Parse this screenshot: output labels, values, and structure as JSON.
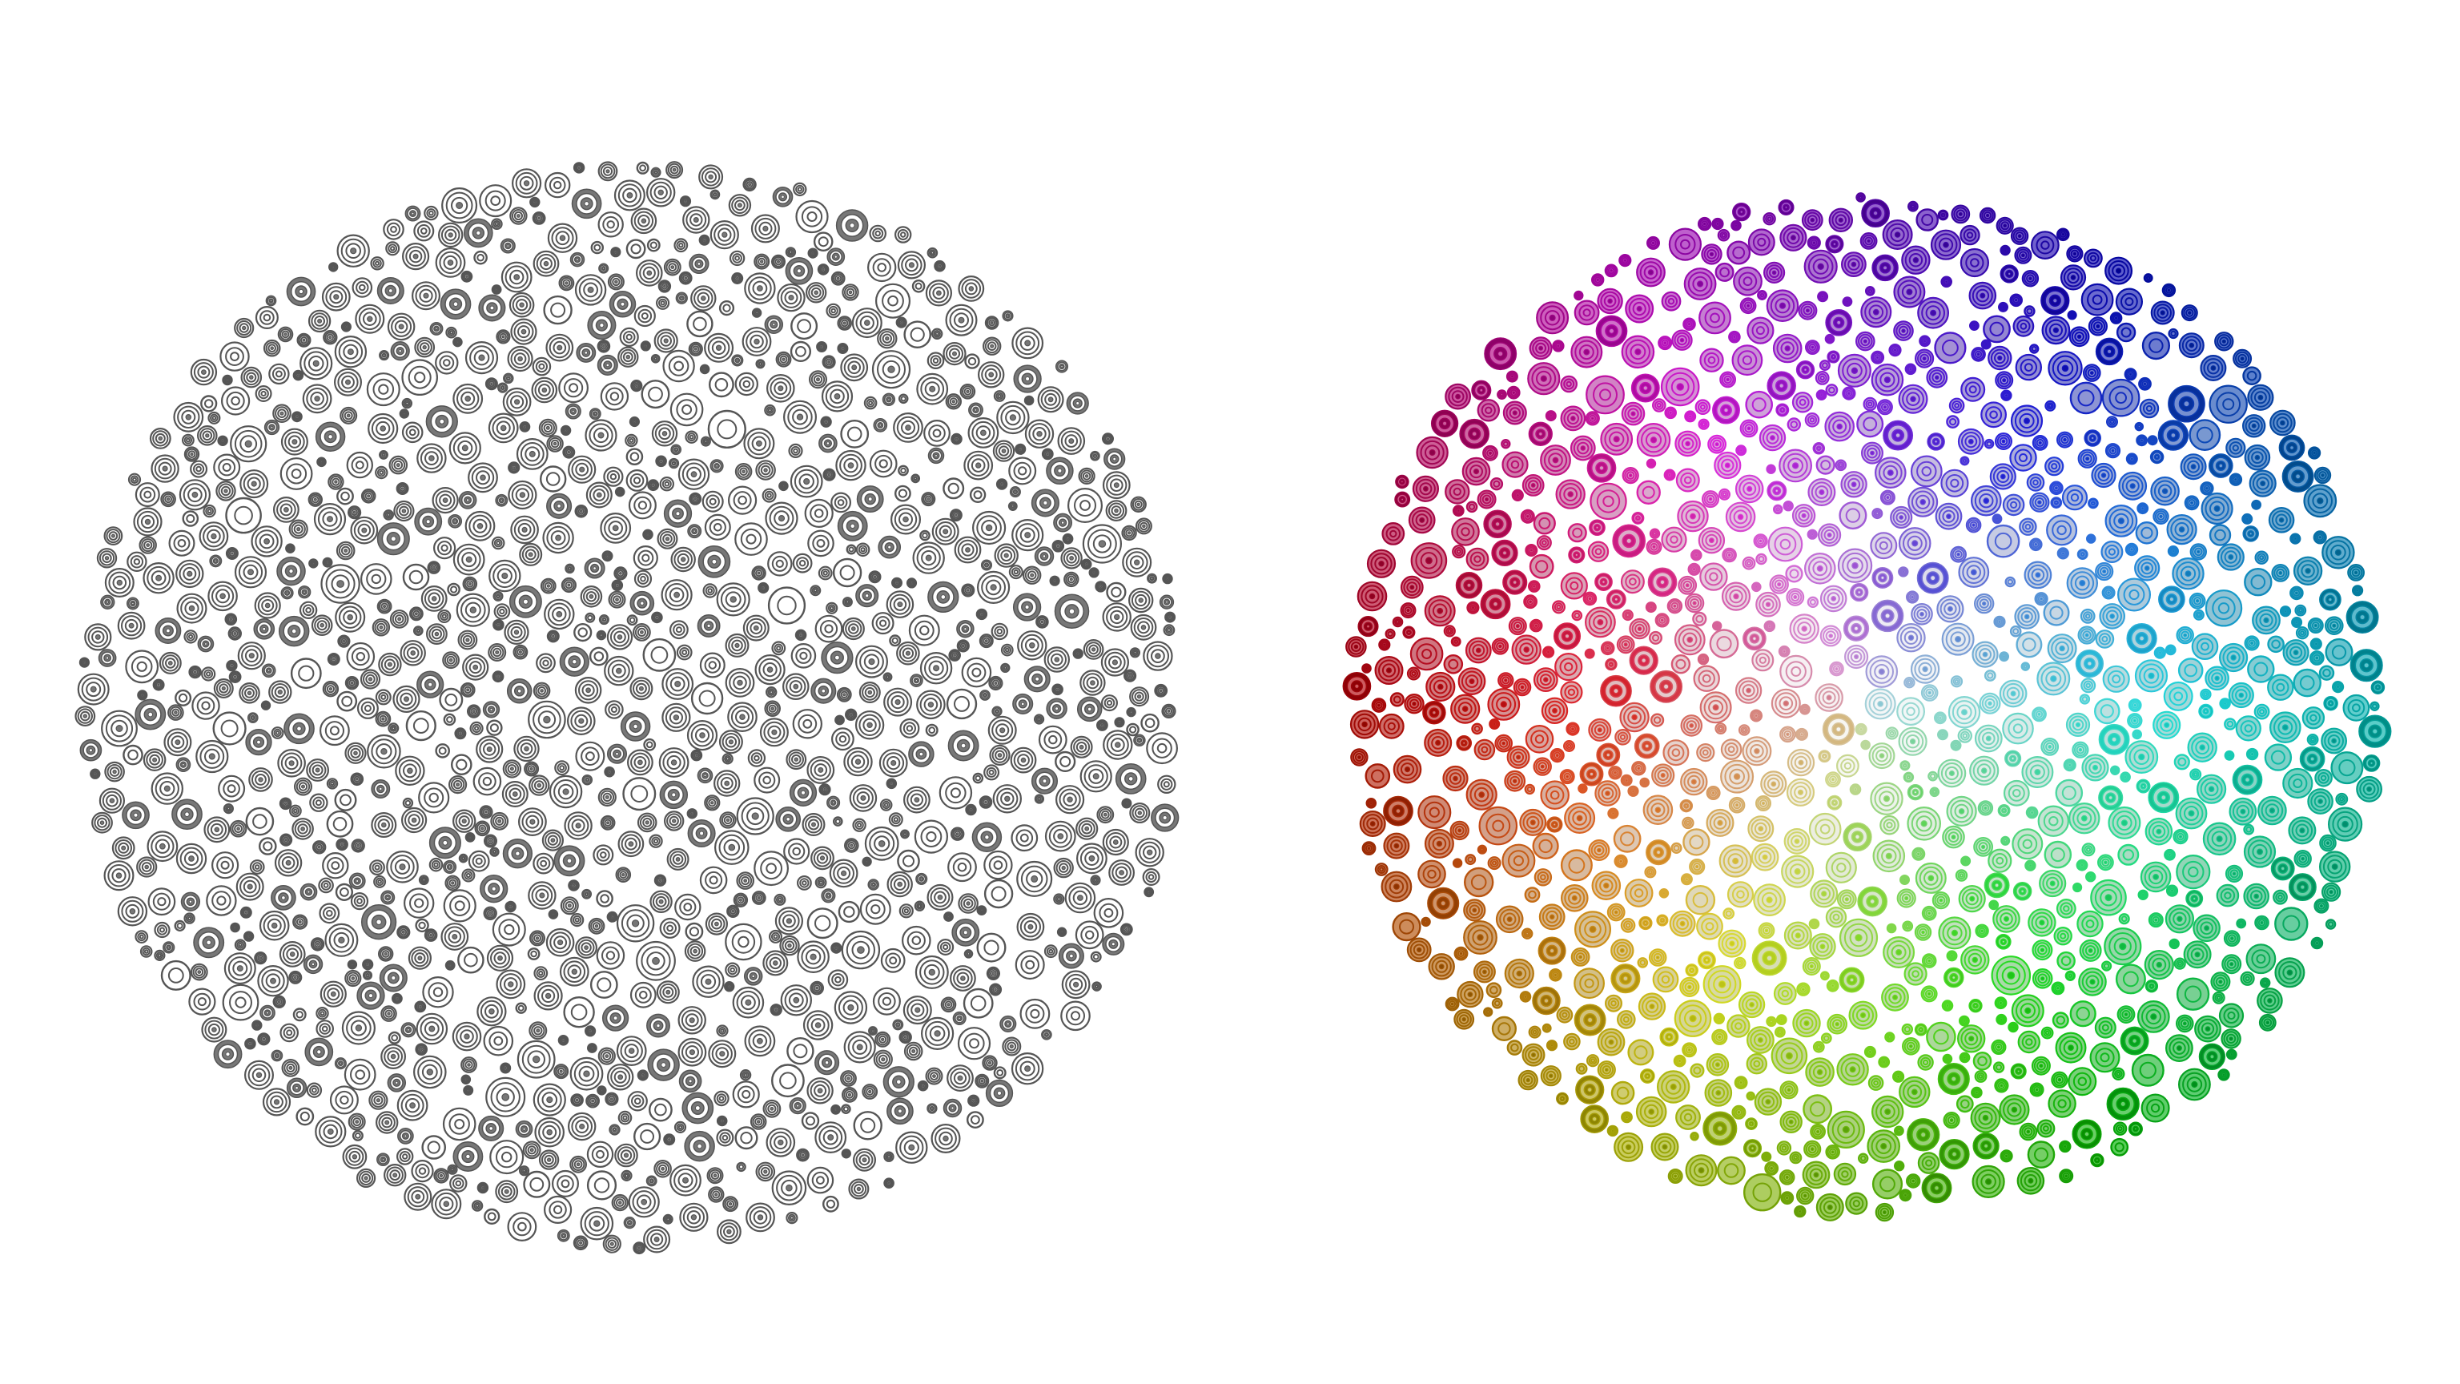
{
  "artwork": {
    "background_color": "#ffffff",
    "panels": [
      {
        "name": "monochrome-disc",
        "style": "grayscale",
        "ring_color": "#555555",
        "fill_color": "#ffffff",
        "dark_fill_color": "#777777",
        "motif": "concentric-rings"
      },
      {
        "name": "color-wheel-disc",
        "style": "hue-wheel",
        "hue_start_degrees_at_right": 180,
        "center_color": "#ffffff",
        "motif": "concentric-rings"
      }
    ]
  }
}
